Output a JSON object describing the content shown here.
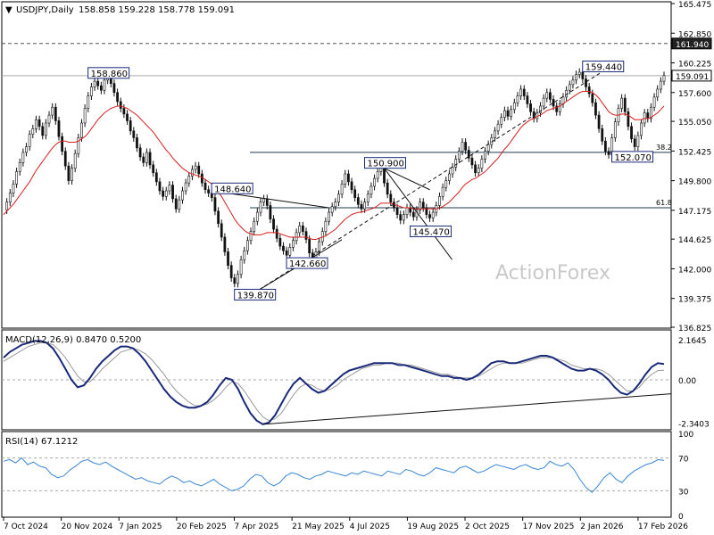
{
  "header": {
    "symbol": "USDJPY,Daily",
    "ohlc": "158.858 159.228 158.778 159.091"
  },
  "watermark": "ActionForex",
  "chart_data": [
    {
      "type": "line",
      "name": "price",
      "ylim": [
        136.825,
        165.475
      ],
      "y_ticks": [
        "165.475",
        "162.850",
        "160.225",
        "157.600",
        "155.050",
        "152.425",
        "149.800",
        "147.175",
        "144.625",
        "142.000",
        "139.375",
        "136.825"
      ],
      "y_tick_values": [
        165.475,
        162.85,
        160.225,
        157.6,
        155.05,
        152.425,
        149.8,
        147.175,
        144.625,
        142.0,
        139.375,
        136.825
      ],
      "price_tags": [
        {
          "label": "161.940",
          "value": 161.94,
          "color": "#000000"
        },
        {
          "label": "159.091",
          "value": 159.091,
          "color": "#000000"
        }
      ],
      "fib_levels": [
        {
          "label": "38.2",
          "value": 152.3
        },
        {
          "label": "61.8",
          "value": 147.4
        }
      ],
      "annotations": [
        {
          "label": "158.860",
          "x": 32,
          "value": 158.86
        },
        {
          "label": "148.640",
          "x": 70,
          "value": 148.64
        },
        {
          "label": "139.870",
          "x": 77,
          "value": 139.87
        },
        {
          "label": "142.660",
          "x": 93,
          "value": 142.66
        },
        {
          "label": "150.900",
          "x": 117,
          "value": 150.9
        },
        {
          "label": "145.470",
          "x": 131,
          "value": 145.47
        },
        {
          "label": "159.440",
          "x": 184,
          "value": 159.44
        },
        {
          "label": "152.070",
          "x": 193,
          "value": 152.07
        }
      ],
      "series": [
        {
          "name": "USDJPY",
          "color": "#000000",
          "values": [
            147.2,
            147.9,
            148.7,
            149.5,
            150.6,
            151.4,
            152.3,
            152.8,
            153.9,
            154.4,
            155.2,
            154.6,
            153.8,
            154.9,
            155.6,
            156.3,
            155.1,
            153.7,
            152.4,
            151.1,
            149.8,
            150.9,
            152.2,
            153.6,
            154.9,
            156.2,
            157.3,
            158.1,
            158.6,
            158.2,
            157.8,
            158.7,
            158.9,
            158.4,
            157.6,
            156.8,
            156.2,
            155.7,
            155.1,
            154.2,
            153.6,
            152.7,
            151.9,
            151.4,
            152.3,
            151.2,
            150.5,
            149.7,
            148.9,
            148.4,
            148.9,
            149.4,
            148.2,
            147.3,
            148.1,
            148.9,
            149.6,
            150.2,
            150.8,
            151.1,
            150.4,
            149.6,
            149.0,
            148.7,
            148.3,
            147.1,
            146.0,
            144.8,
            143.5,
            142.3,
            141.2,
            140.7,
            141.5,
            142.8,
            143.6,
            144.5,
            145.3,
            146.2,
            147.0,
            147.9,
            148.2,
            147.6,
            146.4,
            145.5,
            144.7,
            144.0,
            143.6,
            143.2,
            143.9,
            144.5,
            145.2,
            145.8,
            145.3,
            144.6,
            143.4,
            143.0,
            143.5,
            144.4,
            145.3,
            146.2,
            147.0,
            147.5,
            147.9,
            148.6,
            149.5,
            150.4,
            149.7,
            149.0,
            148.3,
            147.7,
            147.3,
            147.9,
            148.6,
            149.3,
            150.0,
            150.6,
            150.9,
            149.6,
            148.6,
            147.9,
            147.4,
            146.8,
            146.3,
            146.8,
            147.4,
            147.0,
            146.6,
            147.2,
            147.9,
            147.4,
            146.8,
            146.5,
            147.0,
            147.6,
            148.4,
            149.2,
            149.8,
            150.4,
            151.0,
            151.7,
            152.4,
            153.2,
            152.5,
            151.8,
            151.2,
            150.5,
            150.9,
            151.7,
            152.4,
            153.0,
            153.6,
            154.2,
            154.8,
            155.4,
            156.0,
            155.5,
            156.1,
            156.7,
            157.3,
            157.9,
            157.3,
            156.6,
            155.9,
            155.3,
            155.8,
            156.4,
            157.1,
            157.6,
            157.0,
            156.4,
            155.9,
            156.6,
            157.2,
            157.8,
            158.3,
            158.7,
            159.2,
            159.4,
            158.8,
            158.1,
            157.5,
            156.7,
            155.6,
            154.4,
            153.3,
            152.4,
            152.1,
            153.6,
            155.0,
            156.2,
            157.1,
            155.9,
            154.6,
            153.5,
            152.8,
            153.8,
            154.9,
            155.8,
            155.3,
            156.3,
            157.2,
            157.9,
            158.6,
            159.1
          ]
        },
        {
          "name": "MA",
          "color": "#d91e1e",
          "values": [
            146.8,
            147.1,
            147.4,
            147.7,
            148.1,
            148.5,
            148.9,
            149.3,
            149.7,
            150.2,
            150.7,
            151.1,
            151.5,
            151.9,
            152.3,
            152.7,
            153.0,
            153.2,
            153.3,
            153.3,
            153.2,
            153.2,
            153.2,
            153.3,
            153.5,
            153.7,
            154.0,
            154.4,
            154.8,
            155.2,
            155.5,
            155.8,
            156.0,
            156.2,
            156.3,
            156.4,
            156.4,
            156.3,
            156.2,
            156.0,
            155.8,
            155.6,
            155.3,
            155.0,
            154.7,
            154.4,
            154.1,
            153.7,
            153.3,
            152.9,
            152.5,
            152.2,
            151.8,
            151.5,
            151.2,
            150.9,
            150.7,
            150.5,
            150.4,
            150.3,
            150.2,
            150.1,
            149.9,
            149.7,
            149.5,
            149.2,
            148.8,
            148.4,
            147.9,
            147.4,
            146.9,
            146.4,
            146.0,
            145.7,
            145.4,
            145.2,
            145.1,
            145.0,
            145.0,
            145.0,
            145.1,
            145.2,
            145.2,
            145.2,
            145.2,
            145.1,
            145.0,
            144.9,
            144.8,
            144.8,
            144.8,
            144.8,
            144.8,
            144.8,
            144.7,
            144.6,
            144.6,
            144.7,
            144.8,
            144.9,
            145.1,
            145.3,
            145.5,
            145.8,
            146.1,
            146.4,
            146.6,
            146.8,
            146.9,
            147.0,
            147.0,
            147.1,
            147.2,
            147.3,
            147.4,
            147.6,
            147.8,
            147.8,
            147.8,
            147.8,
            147.7,
            147.6,
            147.5,
            147.4,
            147.4,
            147.4,
            147.3,
            147.3,
            147.3,
            147.3,
            147.3,
            147.3,
            147.3,
            147.3,
            147.4,
            147.5,
            147.7,
            147.9,
            148.2,
            148.5,
            148.8,
            149.2,
            149.5,
            149.7,
            149.9,
            150.0,
            150.2,
            150.4,
            150.6,
            150.9,
            151.2,
            151.5,
            151.8,
            152.2,
            152.6,
            152.9,
            153.3,
            153.7,
            154.1,
            154.5,
            154.8,
            155.0,
            155.2,
            155.3,
            155.5,
            155.6,
            155.8,
            156.0,
            156.1,
            156.2,
            156.3,
            156.4,
            156.6,
            156.8,
            157.0,
            157.2,
            157.4,
            157.6,
            157.7,
            157.7,
            157.7,
            157.6,
            157.4,
            157.1,
            156.7,
            156.3,
            155.9,
            155.7,
            155.6,
            155.6,
            155.7,
            155.7,
            155.6,
            155.4,
            155.2,
            155.2,
            155.2,
            155.3,
            155.3,
            155.4,
            155.6,
            155.8,
            156.1,
            156.4
          ]
        }
      ]
    },
    {
      "type": "line",
      "name": "macd",
      "label": "MACD(12,26,9) 0.8470 0.5200",
      "ylim": [
        -2.6,
        2.6
      ],
      "y_ticks": [
        "2.1645",
        "0.00",
        "-2.3403"
      ],
      "y_tick_values": [
        2.1645,
        0.0,
        -2.3403
      ],
      "series": [
        {
          "name": "MACD",
          "color": "#1a2a7a",
          "values": [
            1.2,
            1.5,
            1.7,
            1.9,
            2.0,
            2.1,
            2.1,
            2.0,
            1.7,
            1.2,
            0.6,
            0.0,
            -0.4,
            -0.3,
            0.1,
            0.6,
            1.0,
            1.3,
            1.6,
            1.8,
            1.8,
            1.7,
            1.4,
            1.0,
            0.5,
            0.0,
            -0.5,
            -0.9,
            -1.2,
            -1.4,
            -1.5,
            -1.5,
            -1.4,
            -1.2,
            -0.8,
            -0.3,
            0.1,
            0.0,
            -0.5,
            -1.2,
            -1.8,
            -2.2,
            -2.4,
            -2.3,
            -1.9,
            -1.3,
            -0.7,
            -0.2,
            0.1,
            -0.2,
            -0.5,
            -0.7,
            -0.6,
            -0.3,
            0.0,
            0.3,
            0.5,
            0.6,
            0.7,
            0.8,
            0.9,
            0.9,
            0.9,
            0.9,
            0.8,
            0.8,
            0.7,
            0.6,
            0.5,
            0.4,
            0.3,
            0.2,
            0.2,
            0.1,
            0.1,
            0.0,
            0.1,
            0.3,
            0.6,
            0.9,
            1.0,
            1.0,
            0.9,
            0.9,
            1.0,
            1.1,
            1.2,
            1.3,
            1.3,
            1.2,
            1.0,
            0.8,
            0.6,
            0.5,
            0.5,
            0.6,
            0.5,
            0.3,
            0.0,
            -0.4,
            -0.7,
            -0.8,
            -0.6,
            -0.2,
            0.3,
            0.7,
            0.9,
            0.85
          ]
        },
        {
          "name": "Signal",
          "color": "#9a9a9a",
          "values": [
            1.0,
            1.2,
            1.4,
            1.6,
            1.8,
            1.9,
            2.0,
            2.0,
            1.9,
            1.6,
            1.2,
            0.7,
            0.2,
            -0.1,
            -0.1,
            0.2,
            0.6,
            0.9,
            1.2,
            1.5,
            1.6,
            1.7,
            1.6,
            1.4,
            1.1,
            0.7,
            0.3,
            -0.2,
            -0.6,
            -0.9,
            -1.2,
            -1.4,
            -1.4,
            -1.3,
            -1.1,
            -0.8,
            -0.4,
            -0.1,
            -0.2,
            -0.6,
            -1.1,
            -1.6,
            -2.0,
            -2.2,
            -2.1,
            -1.8,
            -1.3,
            -0.8,
            -0.4,
            -0.2,
            -0.3,
            -0.5,
            -0.6,
            -0.5,
            -0.3,
            0.0,
            0.2,
            0.4,
            0.6,
            0.7,
            0.8,
            0.8,
            0.9,
            0.9,
            0.9,
            0.8,
            0.8,
            0.7,
            0.6,
            0.5,
            0.4,
            0.3,
            0.3,
            0.2,
            0.1,
            0.1,
            0.1,
            0.2,
            0.4,
            0.6,
            0.8,
            0.9,
            0.9,
            0.9,
            0.9,
            1.0,
            1.1,
            1.2,
            1.2,
            1.2,
            1.1,
            1.0,
            0.8,
            0.7,
            0.6,
            0.6,
            0.6,
            0.5,
            0.3,
            0.0,
            -0.3,
            -0.6,
            -0.6,
            -0.4,
            0.0,
            0.3,
            0.5,
            0.52
          ]
        }
      ]
    },
    {
      "type": "line",
      "name": "rsi",
      "label": "RSI(14) 67.1212",
      "ylim": [
        0,
        100
      ],
      "y_ticks": [
        "100",
        "70",
        "30",
        "0"
      ],
      "y_tick_values": [
        100,
        70,
        30,
        0
      ],
      "series": [
        {
          "name": "RSI",
          "color": "#3a86d4",
          "values": [
            66,
            68,
            64,
            70,
            62,
            65,
            60,
            58,
            50,
            46,
            48,
            55,
            60,
            66,
            68,
            64,
            62,
            65,
            60,
            56,
            52,
            48,
            44,
            46,
            42,
            40,
            38,
            44,
            48,
            45,
            40,
            42,
            38,
            36,
            40,
            44,
            38,
            34,
            30,
            32,
            36,
            44,
            50,
            48,
            40,
            36,
            40,
            48,
            52,
            50,
            46,
            44,
            48,
            50,
            54,
            52,
            50,
            48,
            52,
            50,
            54,
            52,
            50,
            48,
            54,
            52,
            50,
            56,
            54,
            50,
            48,
            52,
            58,
            56,
            54,
            52,
            58,
            60,
            56,
            52,
            54,
            58,
            62,
            60,
            58,
            56,
            60,
            62,
            58,
            56,
            58,
            66,
            62,
            60,
            64,
            56,
            44,
            34,
            28,
            36,
            46,
            52,
            44,
            40,
            48,
            54,
            58,
            62,
            64,
            68,
            67
          ]
        }
      ]
    }
  ],
  "x_axis": {
    "labels": [
      "7 Oct 2024",
      "20 Nov 2024",
      "7 Jan 2025",
      "20 Feb 2025",
      "7 Apr 2025",
      "21 May 2025",
      "4 Jul 2025",
      "19 Aug 2025",
      "2 Oct 2025",
      "17 Nov 2025",
      "2 Jan 2026",
      "17 Feb 2026"
    ]
  }
}
